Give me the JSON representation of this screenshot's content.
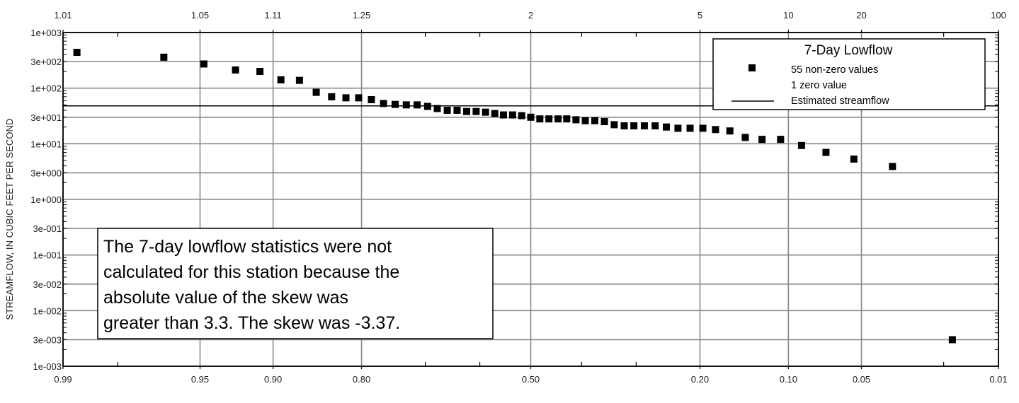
{
  "chart_data": {
    "type": "scatter",
    "ylabel": "STREAMFLOW, IN CUBIC FEET PER SECOND",
    "y_scale": "log",
    "ylim": [
      0.001,
      1000
    ],
    "y_ticks": [
      {
        "value": 1000,
        "label": "1e+003"
      },
      {
        "value": 300,
        "label": "3e+002"
      },
      {
        "value": 100,
        "label": "1e+002"
      },
      {
        "value": 30,
        "label": "3e+001"
      },
      {
        "value": 10,
        "label": "1e+001"
      },
      {
        "value": 3,
        "label": "3e+000"
      },
      {
        "value": 1,
        "label": "1e+000"
      },
      {
        "value": 0.3,
        "label": "3e-001"
      },
      {
        "value": 0.1,
        "label": "1e-001"
      },
      {
        "value": 0.03,
        "label": "3e-002"
      },
      {
        "value": 0.01,
        "label": "1e-002"
      },
      {
        "value": 0.003,
        "label": "3e-003"
      },
      {
        "value": 0.001,
        "label": "1e-003"
      }
    ],
    "x_scale": "probability (annual non-exceedance)",
    "xlim": [
      0.99,
      0.01
    ],
    "x_ticks": [
      {
        "value": 0.99,
        "label": "0.99"
      },
      {
        "value": 0.95,
        "label": "0.95"
      },
      {
        "value": 0.9,
        "label": "0.90"
      },
      {
        "value": 0.8,
        "label": "0.80"
      },
      {
        "value": 0.5,
        "label": "0.50"
      },
      {
        "value": 0.2,
        "label": "0.20"
      },
      {
        "value": 0.1,
        "label": "0.10"
      },
      {
        "value": 0.05,
        "label": "0.05"
      },
      {
        "value": 0.01,
        "label": "0.01"
      }
    ],
    "x_minor_ticks": [
      0.98,
      0.7,
      0.6,
      0.4,
      0.3,
      0.02
    ],
    "top_ticks": [
      {
        "value": 0.99,
        "label": "1.01"
      },
      {
        "value": 0.95,
        "label": "1.05"
      },
      {
        "value": 0.9,
        "label": "1.11"
      },
      {
        "value": 0.8,
        "label": "1.25"
      },
      {
        "value": 0.5,
        "label": "2"
      },
      {
        "value": 0.2,
        "label": "5"
      },
      {
        "value": 0.1,
        "label": "10"
      },
      {
        "value": 0.05,
        "label": "20"
      },
      {
        "value": 0.01,
        "label": "100"
      }
    ],
    "grid": true,
    "legend_position": "top-right",
    "legend": {
      "title": "7-Day Lowflow",
      "entries": [
        "55 non-zero values",
        "1 zero value",
        "Estimated streamflow"
      ]
    },
    "estimated_streamflow": 48,
    "annotation": [
      "The 7-day lowflow statistics were not",
      "calculated for this station because the",
      "absolute value of the skew was",
      "greater than 3.3. The skew was -3.37."
    ],
    "series": [
      {
        "name": "55 non-zero values",
        "points": [
          {
            "x": 0.988,
            "y": 440
          },
          {
            "x": 0.966,
            "y": 360
          },
          {
            "x": 0.948,
            "y": 272
          },
          {
            "x": 0.929,
            "y": 212
          },
          {
            "x": 0.911,
            "y": 200
          },
          {
            "x": 0.893,
            "y": 141
          },
          {
            "x": 0.875,
            "y": 138
          },
          {
            "x": 0.857,
            "y": 84
          },
          {
            "x": 0.839,
            "y": 70
          },
          {
            "x": 0.821,
            "y": 67
          },
          {
            "x": 0.804,
            "y": 67
          },
          {
            "x": 0.786,
            "y": 62
          },
          {
            "x": 0.768,
            "y": 53
          },
          {
            "x": 0.75,
            "y": 51
          },
          {
            "x": 0.732,
            "y": 50
          },
          {
            "x": 0.714,
            "y": 50
          },
          {
            "x": 0.696,
            "y": 47
          },
          {
            "x": 0.679,
            "y": 43
          },
          {
            "x": 0.661,
            "y": 40
          },
          {
            "x": 0.643,
            "y": 40
          },
          {
            "x": 0.625,
            "y": 38
          },
          {
            "x": 0.607,
            "y": 38
          },
          {
            "x": 0.589,
            "y": 37
          },
          {
            "x": 0.571,
            "y": 35
          },
          {
            "x": 0.554,
            "y": 33
          },
          {
            "x": 0.536,
            "y": 33
          },
          {
            "x": 0.518,
            "y": 32
          },
          {
            "x": 0.5,
            "y": 30
          },
          {
            "x": 0.482,
            "y": 28
          },
          {
            "x": 0.464,
            "y": 28
          },
          {
            "x": 0.446,
            "y": 28
          },
          {
            "x": 0.429,
            "y": 28
          },
          {
            "x": 0.411,
            "y": 27
          },
          {
            "x": 0.393,
            "y": 26
          },
          {
            "x": 0.375,
            "y": 26
          },
          {
            "x": 0.357,
            "y": 25
          },
          {
            "x": 0.339,
            "y": 22
          },
          {
            "x": 0.321,
            "y": 21
          },
          {
            "x": 0.304,
            "y": 21
          },
          {
            "x": 0.286,
            "y": 21
          },
          {
            "x": 0.268,
            "y": 21
          },
          {
            "x": 0.25,
            "y": 20
          },
          {
            "x": 0.232,
            "y": 19
          },
          {
            "x": 0.214,
            "y": 19
          },
          {
            "x": 0.196,
            "y": 19
          },
          {
            "x": 0.179,
            "y": 18
          },
          {
            "x": 0.161,
            "y": 17
          },
          {
            "x": 0.143,
            "y": 13
          },
          {
            "x": 0.125,
            "y": 12
          },
          {
            "x": 0.107,
            "y": 12
          },
          {
            "x": 0.089,
            "y": 9.3
          },
          {
            "x": 0.071,
            "y": 7.0
          },
          {
            "x": 0.054,
            "y": 5.3
          },
          {
            "x": 0.036,
            "y": 3.9
          },
          {
            "x": 0.018,
            "y": 0.003
          }
        ]
      }
    ]
  },
  "colors": {
    "grid": "#8a8a80",
    "axis": "#000000",
    "marker": "#000000",
    "background": "#ffffff"
  }
}
